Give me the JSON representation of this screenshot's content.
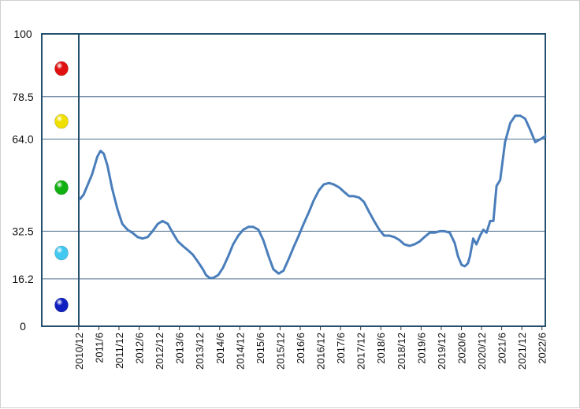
{
  "chart_data": {
    "type": "line",
    "title": "",
    "xlabel": "",
    "ylabel": "",
    "ylim": [
      0,
      100
    ],
    "yticks": [
      "100",
      "78.5",
      "64.0",
      "32.5",
      "16.2",
      "0"
    ],
    "ytick_values": [
      100,
      78.5,
      64.0,
      32.5,
      16.2,
      0
    ],
    "grid_lines_at": [
      78.5,
      64.0,
      32.5,
      16.2
    ],
    "categories": [
      "2010/12",
      "2011/6",
      "2011/12",
      "2012/6",
      "2012/12",
      "2013/6",
      "2013/12",
      "2014/6",
      "2014/12",
      "2015/6",
      "2015/12",
      "2016/6",
      "2016/12",
      "2017/6",
      "2017/12",
      "2018/6",
      "2018/12",
      "2019/6",
      "2019/12",
      "2020/6",
      "2020/12",
      "2021/6",
      "2021/12",
      "2022/6"
    ],
    "series": [
      {
        "color": "#4a7ebb",
        "x": [
          2010.95,
          2011.04,
          2011.13,
          2011.25,
          2011.38,
          2011.46,
          2011.54,
          2011.63,
          2011.75,
          2011.88,
          2012.0,
          2012.13,
          2012.25,
          2012.38,
          2012.5,
          2012.63,
          2012.75,
          2012.88,
          2013.0,
          2013.13,
          2013.25,
          2013.38,
          2013.5,
          2013.63,
          2013.75,
          2013.88,
          2014.0,
          2014.08,
          2014.17,
          2014.25,
          2014.38,
          2014.5,
          2014.63,
          2014.75,
          2014.88,
          2015.0,
          2015.13,
          2015.25,
          2015.38,
          2015.5,
          2015.63,
          2015.75,
          2015.88,
          2016.0,
          2016.13,
          2016.25,
          2016.38,
          2016.5,
          2016.63,
          2016.75,
          2016.88,
          2017.0,
          2017.13,
          2017.25,
          2017.38,
          2017.5,
          2017.63,
          2017.75,
          2017.88,
          2018.0,
          2018.13,
          2018.25,
          2018.38,
          2018.5,
          2018.63,
          2018.75,
          2018.88,
          2019.0,
          2019.13,
          2019.25,
          2019.38,
          2019.5,
          2019.63,
          2019.75,
          2019.88,
          2020.0,
          2020.13,
          2020.25,
          2020.33,
          2020.42,
          2020.5,
          2020.58,
          2020.63,
          2020.71,
          2020.79,
          2020.88,
          2020.96,
          2021.04,
          2021.13,
          2021.21,
          2021.29,
          2021.38,
          2021.5,
          2021.63,
          2021.75,
          2021.88,
          2022.0,
          2022.13,
          2022.25,
          2022.38,
          2022.5
        ],
        "values": [
          43.5,
          45,
          48,
          52,
          58,
          60,
          59,
          55,
          47,
          40,
          35,
          33,
          32,
          30.5,
          30,
          30.5,
          32.5,
          35,
          36,
          35,
          32,
          29,
          27.5,
          26,
          24.5,
          22,
          19.5,
          17.5,
          16.5,
          16.5,
          17.5,
          20,
          24,
          28,
          31,
          33,
          34,
          34,
          33,
          29.5,
          24,
          19.5,
          18,
          19,
          23,
          27,
          31,
          35,
          39,
          43,
          46.5,
          48.5,
          49,
          48.5,
          47.5,
          46,
          44.5,
          44.5,
          44,
          42.5,
          39,
          36,
          33,
          31,
          31,
          30.5,
          29.5,
          28,
          27.5,
          28,
          29,
          30.5,
          32,
          32,
          32.5,
          32.5,
          32,
          28.5,
          24,
          21,
          20.5,
          21.5,
          24,
          30,
          28,
          31,
          33,
          32,
          36,
          36,
          48,
          50,
          63,
          69.5,
          72,
          72,
          71,
          67,
          63,
          64,
          65
        ]
      }
    ],
    "legend_markers": [
      {
        "color": "#e01010",
        "label": ""
      },
      {
        "color": "#f0e000",
        "label": ""
      },
      {
        "color": "#10b010",
        "label": ""
      },
      {
        "color": "#40c8f0",
        "label": ""
      },
      {
        "color": "#1020c0",
        "label": ""
      }
    ],
    "frame_color": "#24506e",
    "grid_color": "#4a6d8c"
  }
}
